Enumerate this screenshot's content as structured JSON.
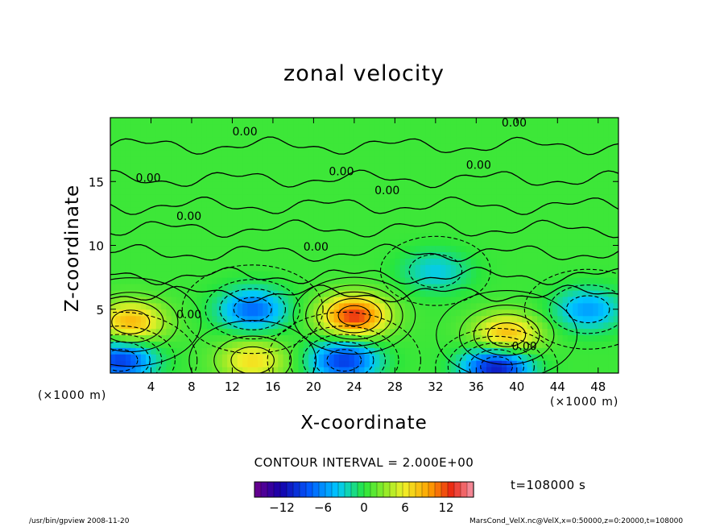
{
  "chart_data": {
    "type": "heatmap",
    "title": "zonal velocity",
    "xlabel": "X-coordinate",
    "ylabel": "Z-coordinate",
    "x_unit": "(×1000 m)",
    "z_unit": "(×1000 m)",
    "xlim": [
      0,
      50
    ],
    "ylim": [
      0,
      20
    ],
    "x_ticks": [
      4,
      8,
      12,
      16,
      20,
      24,
      28,
      32,
      36,
      40,
      44,
      48
    ],
    "y_ticks": [
      5,
      10,
      15
    ],
    "contour_interval": "CONTOUR INTERVAL = 2.000E+00",
    "contour_labels": [
      "0.00",
      "0.00",
      "0.00",
      "0.00",
      "0.00",
      "0.00",
      "0.00",
      "0.00",
      "0.00",
      "0.00"
    ],
    "colorbar": {
      "range": [
        -16,
        16
      ],
      "ticks": [
        -12,
        -6,
        0,
        6,
        12
      ],
      "tick_labels": [
        "−12",
        "−6",
        "0",
        "6",
        "12"
      ]
    },
    "features": [
      {
        "x": 2,
        "z": 4,
        "value": 8
      },
      {
        "x": 14,
        "z": 5,
        "value": -8
      },
      {
        "x": 14,
        "z": 1,
        "value": 6
      },
      {
        "x": 1,
        "z": 1,
        "value": -10
      },
      {
        "x": 24,
        "z": 4.5,
        "value": 12
      },
      {
        "x": 23,
        "z": 1,
        "value": -10
      },
      {
        "x": 39,
        "z": 3,
        "value": 8
      },
      {
        "x": 38,
        "z": 0.5,
        "value": -12
      },
      {
        "x": 47,
        "z": 5,
        "value": -6
      },
      {
        "x": 32,
        "z": 8,
        "value": -4
      }
    ],
    "time_label": "t=108000 s"
  },
  "footer": {
    "left": "/usr/bin/gpview  2008-11-20",
    "right": "MarsCond_VelX.nc@VelX,x=0:50000,z=0:20000,t=108000"
  }
}
